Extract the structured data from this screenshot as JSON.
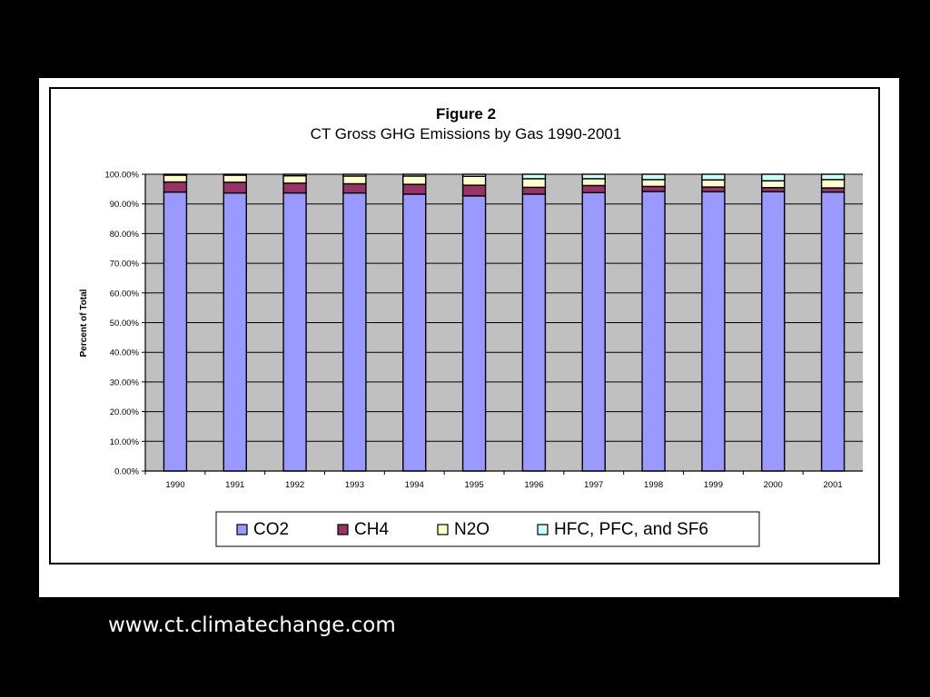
{
  "source_url": "www.ct.climatechange.com",
  "chart_data": {
    "type": "bar",
    "stacked": true,
    "title": "Figure 2",
    "subtitle": "CT Gross GHG Emissions by Gas 1990-2001",
    "xlabel": "",
    "ylabel": "Percent of Total",
    "ylim": [
      0,
      100
    ],
    "yticks": [
      "0.00%",
      "10.00%",
      "20.00%",
      "30.00%",
      "40.00%",
      "50.00%",
      "60.00%",
      "70.00%",
      "80.00%",
      "90.00%",
      "100.00%"
    ],
    "grid": true,
    "legend_position": "bottom",
    "plot_background": "#c0c0c0",
    "categories": [
      "1990",
      "1991",
      "1992",
      "1993",
      "1994",
      "1995",
      "1996",
      "1997",
      "1998",
      "1999",
      "2000",
      "2001"
    ],
    "series": [
      {
        "name": "CO2",
        "color": "#9999ff",
        "values": [
          94.0,
          93.7,
          93.7,
          93.7,
          93.3,
          92.7,
          93.3,
          93.8,
          94.2,
          94.1,
          94.1,
          94.0
        ]
      },
      {
        "name": "CH4",
        "color": "#993366",
        "values": [
          3.4,
          3.6,
          3.3,
          3.1,
          3.3,
          3.6,
          2.3,
          2.4,
          1.7,
          1.6,
          1.4,
          1.4
        ]
      },
      {
        "name": "N2O",
        "color": "#ffffcc",
        "values": [
          2.3,
          2.4,
          2.5,
          2.6,
          2.8,
          3.0,
          2.9,
          2.3,
          2.3,
          2.4,
          2.3,
          2.8
        ]
      },
      {
        "name": "HFC, PFC, and SF6",
        "color": "#ccffff",
        "values": [
          0.3,
          0.3,
          0.5,
          0.6,
          0.6,
          0.7,
          1.5,
          1.5,
          1.8,
          1.9,
          2.2,
          1.8
        ]
      }
    ]
  }
}
